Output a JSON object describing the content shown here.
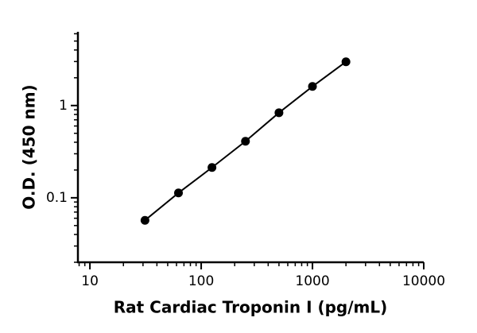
{
  "chart_data": {
    "type": "scatter",
    "x_label": "Rat Cardiac Troponin I (pg/mL)",
    "y_label": "O.D. (450 nm)",
    "x": [
      31.25,
      62.5,
      125,
      250,
      500,
      1000,
      2000
    ],
    "values": [
      0.057,
      0.113,
      0.213,
      0.41,
      0.836,
      1.61,
      2.98
    ],
    "color": "#000000",
    "connect_points": true,
    "x_log": true,
    "y_log": true,
    "xlim": [
      7.8,
      10000
    ],
    "xticks": [
      10,
      100,
      1000,
      10000
    ],
    "ylim": [
      0.02,
      6.3
    ],
    "yticks": [
      0.1,
      1
    ],
    "minor_ticks": true
  }
}
